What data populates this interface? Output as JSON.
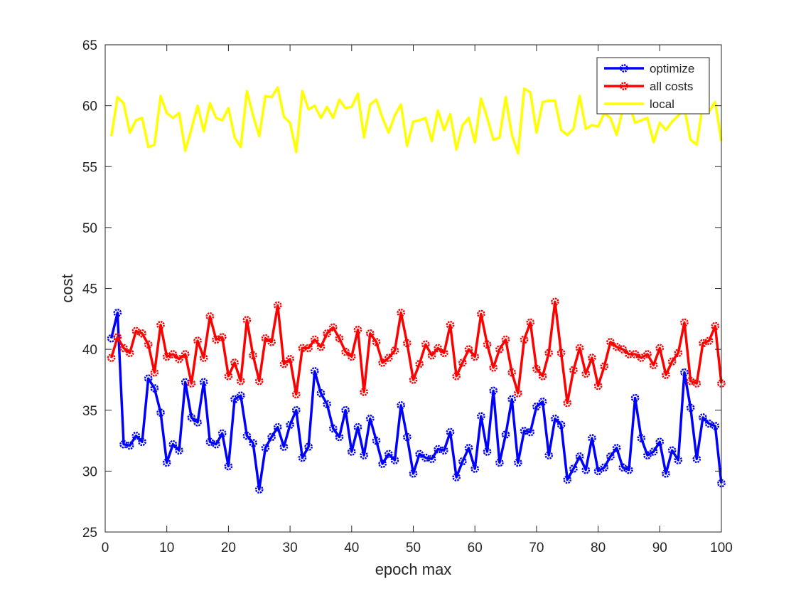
{
  "chart_data": {
    "type": "line",
    "title": "",
    "xlabel": "epoch max",
    "ylabel": "cost",
    "xlim": [
      0,
      100
    ],
    "ylim": [
      25,
      65
    ],
    "xticks": [
      0,
      10,
      20,
      30,
      40,
      50,
      60,
      70,
      80,
      90,
      100
    ],
    "yticks": [
      25,
      30,
      35,
      40,
      45,
      50,
      55,
      60,
      65
    ],
    "xtick_labels": [
      "0",
      "10",
      "20",
      "30",
      "40",
      "50",
      "60",
      "70",
      "80",
      "90",
      "100"
    ],
    "ytick_labels": [
      "25",
      "30",
      "35",
      "40",
      "45",
      "50",
      "55",
      "60",
      "65"
    ],
    "grid": false,
    "legend": {
      "position": "top-right",
      "entries": [
        "optimize",
        "all costs",
        "local"
      ]
    },
    "x": [
      1,
      2,
      3,
      4,
      5,
      6,
      7,
      8,
      9,
      10,
      11,
      12,
      13,
      14,
      15,
      16,
      17,
      18,
      19,
      20,
      21,
      22,
      23,
      24,
      25,
      26,
      27,
      28,
      29,
      30,
      31,
      32,
      33,
      34,
      35,
      36,
      37,
      38,
      39,
      40,
      41,
      42,
      43,
      44,
      45,
      46,
      47,
      48,
      49,
      50,
      51,
      52,
      53,
      54,
      55,
      56,
      57,
      58,
      59,
      60,
      61,
      62,
      63,
      64,
      65,
      66,
      67,
      68,
      69,
      70,
      71,
      72,
      73,
      74,
      75,
      76,
      77,
      78,
      79,
      80,
      81,
      82,
      83,
      84,
      85,
      86,
      87,
      88,
      89,
      90,
      91,
      92,
      93,
      94,
      95,
      96,
      97,
      98,
      99,
      100
    ],
    "series": [
      {
        "name": "optimize",
        "color": "#0000ff",
        "marker": "circle",
        "values": [
          40.9,
          43.0,
          32.2,
          32.1,
          32.9,
          32.4,
          37.6,
          36.8,
          34.8,
          30.7,
          32.2,
          31.7,
          37.3,
          34.4,
          34.0,
          37.3,
          32.4,
          32.2,
          33.1,
          30.4,
          35.9,
          36.2,
          32.9,
          32.3,
          28.5,
          31.9,
          32.8,
          33.6,
          32.0,
          33.8,
          35.0,
          31.1,
          32.0,
          38.2,
          36.4,
          35.5,
          33.5,
          32.8,
          35.0,
          31.6,
          33.6,
          31.3,
          34.3,
          32.5,
          30.6,
          31.4,
          30.9,
          35.4,
          32.8,
          29.8,
          31.4,
          31.1,
          31.0,
          31.8,
          31.7,
          33.2,
          29.5,
          30.8,
          31.9,
          30.2,
          34.5,
          31.6,
          36.6,
          30.7,
          33.0,
          35.9,
          30.7,
          33.3,
          33.2,
          35.3,
          35.7,
          31.3,
          34.3,
          33.8,
          29.3,
          30.2,
          31.2,
          30.1,
          32.7,
          30.0,
          30.3,
          31.2,
          31.9,
          30.3,
          30.1,
          36.0,
          32.7,
          31.3,
          31.6,
          32.4,
          29.8,
          31.7,
          30.9,
          38.1,
          35.2,
          31.0,
          34.4,
          33.9,
          33.7,
          29.0
        ]
      },
      {
        "name": "all costs",
        "color": "#ff0000",
        "marker": "circle",
        "values": [
          39.3,
          41.0,
          40.1,
          39.7,
          41.5,
          41.3,
          40.4,
          38.1,
          42.0,
          39.4,
          39.6,
          39.2,
          39.6,
          37.2,
          40.7,
          39.3,
          42.7,
          40.8,
          41.0,
          37.8,
          38.9,
          37.4,
          42.4,
          39.5,
          37.4,
          40.9,
          40.6,
          43.6,
          38.8,
          39.2,
          36.3,
          40.1,
          40.1,
          40.8,
          40.2,
          41.3,
          41.8,
          40.9,
          39.8,
          39.4,
          41.6,
          36.5,
          41.3,
          40.6,
          38.9,
          39.3,
          39.9,
          43.0,
          40.5,
          37.5,
          38.8,
          40.4,
          39.5,
          40.1,
          39.7,
          42.0,
          37.8,
          38.9,
          40.0,
          39.4,
          42.9,
          40.4,
          38.5,
          40.0,
          40.8,
          38.1,
          36.4,
          40.8,
          42.2,
          38.4,
          37.8,
          39.7,
          43.9,
          39.7,
          35.6,
          38.3,
          40.1,
          38.0,
          39.3,
          37.0,
          38.6,
          40.6,
          40.2,
          40.0,
          39.6,
          39.6,
          39.3,
          39.6,
          38.7,
          40.1,
          37.9,
          39.0,
          39.7,
          42.2,
          37.4,
          37.2,
          40.5,
          40.7,
          41.9,
          37.2
        ]
      },
      {
        "name": "local",
        "color": "#ffff00",
        "marker": "none",
        "values": [
          57.5,
          60.7,
          60.2,
          57.8,
          58.8,
          59.0,
          56.6,
          56.8,
          60.8,
          59.4,
          59.0,
          59.4,
          56.3,
          58.1,
          60.0,
          57.9,
          60.2,
          59.0,
          58.8,
          59.8,
          57.4,
          56.6,
          61.2,
          59.2,
          57.5,
          60.8,
          60.7,
          61.5,
          59.1,
          58.6,
          56.2,
          61.2,
          59.7,
          60.0,
          59.0,
          59.9,
          59.0,
          60.5,
          59.8,
          59.9,
          61.0,
          57.4,
          60.1,
          60.5,
          59.0,
          57.8,
          59.2,
          60.1,
          56.7,
          58.7,
          58.8,
          59.0,
          57.1,
          59.6,
          58.0,
          59.3,
          56.4,
          58.4,
          59.0,
          57.0,
          60.6,
          59.0,
          57.2,
          57.4,
          60.7,
          57.6,
          56.1,
          61.4,
          61.1,
          57.8,
          60.3,
          60.4,
          60.4,
          58.0,
          57.6,
          58.1,
          60.8,
          58.1,
          58.4,
          58.3,
          59.4,
          59.0,
          57.6,
          59.7,
          60.2,
          58.6,
          58.8,
          59.0,
          57.0,
          58.6,
          58.0,
          58.7,
          59.2,
          59.8,
          57.2,
          56.8,
          60.1,
          59.5,
          60.3,
          57.1
        ]
      }
    ]
  }
}
